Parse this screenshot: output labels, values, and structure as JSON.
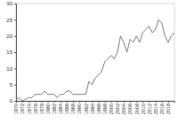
{
  "chart_data": {
    "type": "line",
    "color": "#808080",
    "x": [
      1970,
      1971,
      1972,
      1973,
      1974,
      1975,
      1976,
      1977,
      1978,
      1979,
      1980,
      1981,
      1982,
      1983,
      1984,
      1985,
      1986,
      1987,
      1988,
      1989,
      1990,
      1991,
      1992,
      1993,
      1994,
      1995,
      1996,
      1997,
      1998,
      1999,
      2000,
      2001,
      2002,
      2003,
      2004,
      2005,
      2006,
      2007,
      2008,
      2009,
      2010,
      2011,
      2012,
      2013,
      2014,
      2015,
      2016,
      2017,
      2018,
      2019,
      2020
    ],
    "values": [
      0.3,
      1,
      0,
      0.5,
      1,
      1,
      2,
      2,
      2,
      3,
      2,
      2,
      2,
      1,
      2,
      2,
      3,
      3,
      2,
      2,
      2,
      2,
      2,
      6,
      5,
      7,
      8,
      9,
      12,
      13,
      14,
      13,
      15,
      20,
      18,
      15,
      19,
      18,
      20,
      18,
      21,
      22,
      23,
      21,
      22,
      25,
      24,
      20,
      18,
      20,
      21
    ],
    "xlim": [
      1970,
      2020
    ],
    "xticks": [
      1970,
      1972,
      1974,
      1976,
      1978,
      1980,
      1982,
      1984,
      1986,
      1988,
      1990,
      1992,
      1994,
      1996,
      1998,
      2000,
      2002,
      2004,
      2006,
      2008,
      2010,
      2012,
      2014,
      2016,
      2018
    ],
    "ylim": [
      0,
      30
    ],
    "yticks": [
      0,
      5,
      10,
      15,
      20,
      25,
      30
    ],
    "grid": false
  }
}
